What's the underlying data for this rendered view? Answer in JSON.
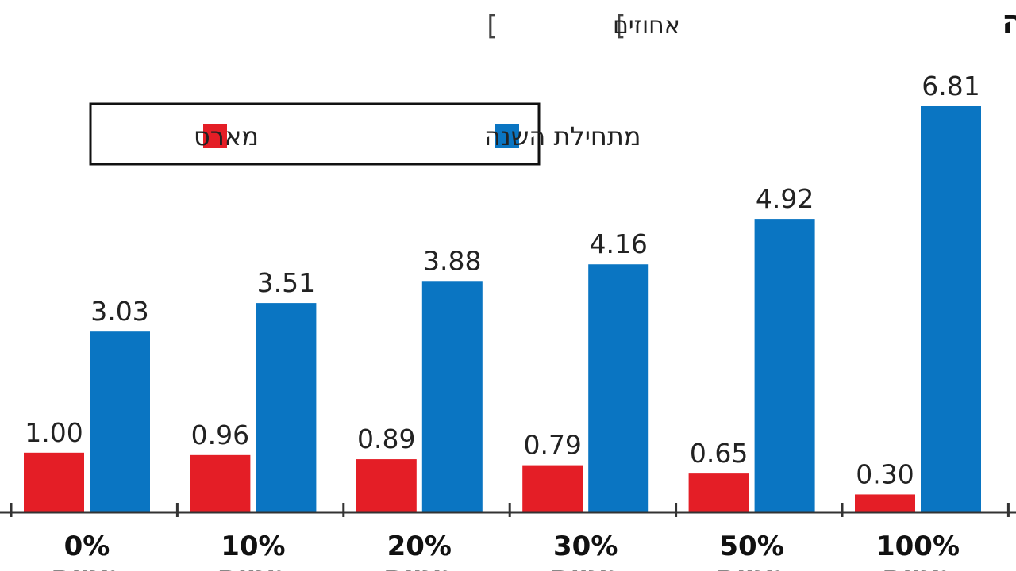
{
  "chart_data": {
    "type": "bar",
    "title": "התיקים נעים בבטחה",
    "subtitle": "אחוזים",
    "categories": [
      "0%",
      "10%",
      "20%",
      "30%",
      "50%",
      "100%"
    ],
    "category_suffix": "מניות",
    "series": [
      {
        "name": "מארס",
        "color": "#e41e26",
        "values": [
          1.0,
          0.96,
          0.89,
          0.79,
          0.65,
          0.3
        ],
        "labels": [
          "1.00",
          "0.96",
          "0.89",
          "0.79",
          "0.65",
          "0.30"
        ]
      },
      {
        "name": "מתחילת השנה",
        "color": "#0a75c2",
        "values": [
          3.03,
          3.51,
          3.88,
          4.16,
          4.92,
          6.81
        ],
        "labels": [
          "3.03",
          "3.51",
          "3.88",
          "4.16",
          "4.92",
          "6.81"
        ]
      }
    ],
    "ylim": [
      0,
      6.81
    ],
    "legend_position": "top-left",
    "grid": false
  },
  "colors": {
    "axis": "#333333",
    "text": "#111111"
  }
}
